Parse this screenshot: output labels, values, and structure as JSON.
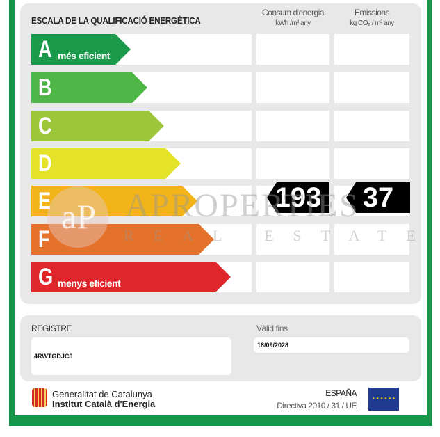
{
  "header": {
    "title": "ESCALA DE LA QUALIFICACIÓ ENERGÈTICA",
    "col1_title": "Consum d'energia",
    "col1_unit": "kWh /m² any",
    "col2_title": "Emissions",
    "col2_unit": "kg CO₂ / m² any"
  },
  "scale": [
    {
      "letter": "A",
      "label": "més eficient",
      "color": "#1a9a4a"
    },
    {
      "letter": "B",
      "label": "",
      "color": "#4fb748"
    },
    {
      "letter": "C",
      "label": "",
      "color": "#9cc73b"
    },
    {
      "letter": "D",
      "label": "",
      "color": "#e5e22a"
    },
    {
      "letter": "E",
      "label": "",
      "color": "#f2b418"
    },
    {
      "letter": "F",
      "label": "",
      "color": "#e5722a"
    },
    {
      "letter": "G",
      "label": "menys eficient",
      "color": "#df262b"
    }
  ],
  "rating": {
    "class": "E",
    "consumption": "193",
    "emissions": "37"
  },
  "registry": {
    "label": "REGISTRE",
    "value": "4RWTGDJC8",
    "valid_label": "Vàlid fins",
    "valid_value": "18/09/2028"
  },
  "footer": {
    "org1": "Generalitat de Catalunya",
    "org2": "Institut Català d'Energia",
    "country": "ESPAÑA",
    "directive": "Directiva 2010 / 31 / UE"
  },
  "watermark": {
    "logo": "aP",
    "line1": "APROPERTIES",
    "line2": "REAL ESTATE"
  }
}
